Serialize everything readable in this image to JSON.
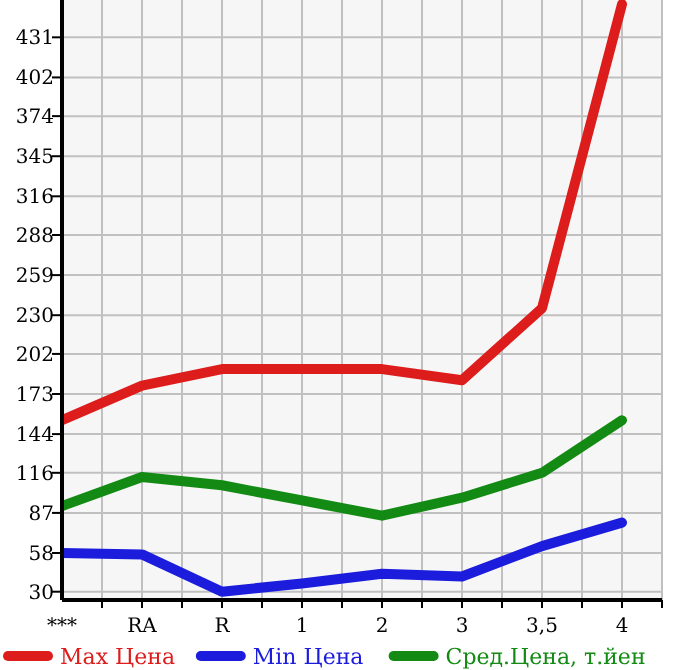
{
  "chart_data": {
    "type": "line",
    "categories": [
      "***",
      "RA",
      "R",
      "1",
      "2",
      "3",
      "3,5",
      "4"
    ],
    "series": [
      {
        "name": "Max Цена",
        "color": "#dd1c1c",
        "values": [
          154,
          179,
          191,
          191,
          191,
          183,
          235,
          455
        ]
      },
      {
        "name": "Min Цена",
        "color": "#1c1cdd",
        "values": [
          58,
          57,
          30,
          36,
          43,
          41,
          63,
          80
        ]
      },
      {
        "name": "Сред.Цена, т.йен",
        "color": "#138a13",
        "values": [
          92,
          113,
          107,
          96,
          85,
          98,
          116,
          154
        ]
      }
    ],
    "ylim": [
      24,
      458
    ],
    "yticks": [
      30,
      58,
      87,
      116,
      144,
      173,
      202,
      230,
      259,
      288,
      316,
      345,
      374,
      402,
      431
    ],
    "grid": true,
    "legend": "bottom",
    "marker": "none",
    "line_style": "solid"
  }
}
